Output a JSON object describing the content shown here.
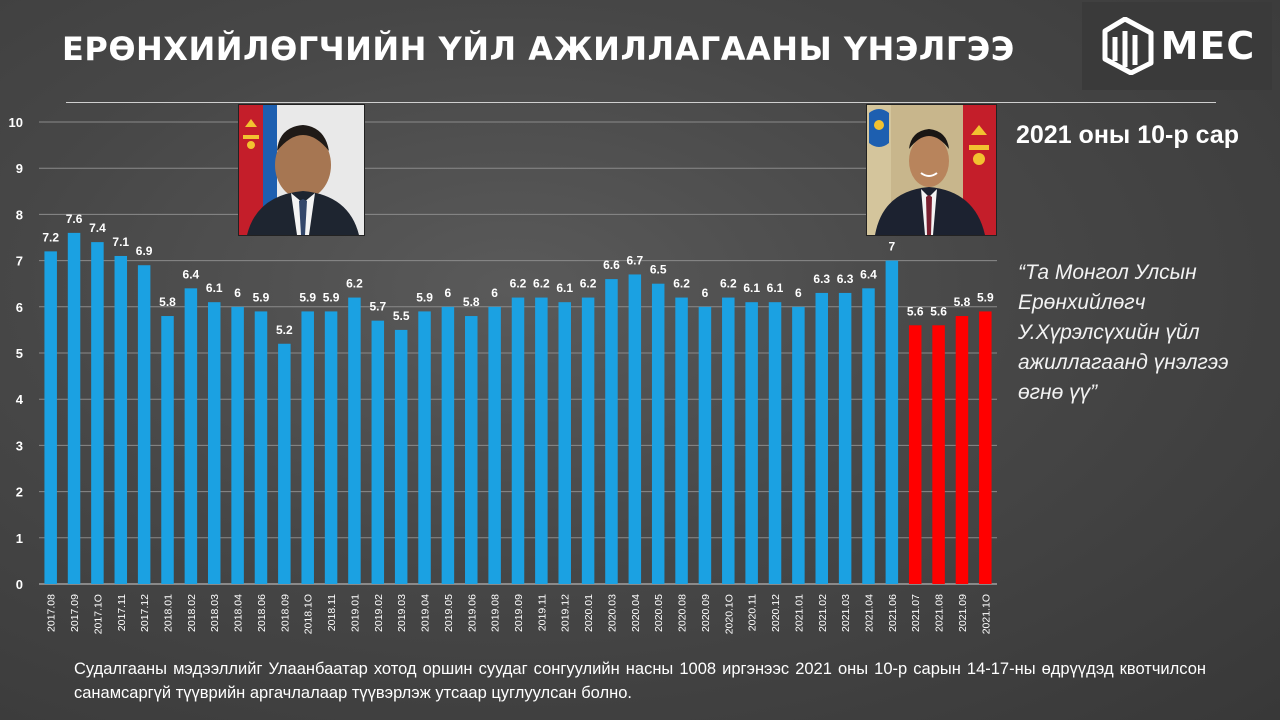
{
  "header": {
    "title": "ЕРӨНХИЙЛӨГЧИЙН ҮЙЛ АЖИЛЛАГААНЫ ҮНЭЛГЭЭ",
    "logo_text": "MEC"
  },
  "period_label": "2021 оны 10-р сар",
  "question_lines": [
    "“Та Монгол Улсын",
    "Ерөнхийлөгч",
    "У.Хүрэлсүхийн үйл",
    "ажиллагаанд үнэлгээ",
    "өгнө үү”"
  ],
  "footnote": "Судалгааны мэдээллийг Улаанбаатар хотод оршин суудаг сонгуулийн насны 1008 иргэнээс 2021 оны 10-р сарын 14-17-ны өдрүүдэд квотчилсон санамсаргүй түүврийн аргачлалаар түүвэрлэж утсаар цуглуулсан болно.",
  "colors": {
    "series_1": "#1BA1E2",
    "series_2": "#FF0000",
    "background": "#474747",
    "text": "#FFFFFF"
  },
  "chart_data": {
    "type": "bar",
    "title": "",
    "xlabel": "",
    "ylabel": "",
    "ylim": [
      0,
      10
    ],
    "yticks": [
      0,
      1,
      2,
      3,
      4,
      5,
      6,
      7,
      8,
      9,
      10
    ],
    "grid": true,
    "legend": "none",
    "categories": [
      "2017.08",
      "2017.09",
      "2017.1O",
      "2017.11",
      "2017.12",
      "2018.01",
      "2018.02",
      "2018.03",
      "2018.04",
      "2018.06",
      "2018.09",
      "2018.1O",
      "2018.11",
      "2019.01",
      "2019.02",
      "2019.03",
      "2019.04",
      "2019.05",
      "2019.06",
      "2019.08",
      "2019.09",
      "2019.11",
      "2019.12",
      "2020.01",
      "2020.03",
      "2020.04",
      "2020.05",
      "2020.08",
      "2020.09",
      "2020.1O",
      "2020.11",
      "2020.12",
      "2021.01",
      "2021.02",
      "2021.03",
      "2021.04",
      "2021.06",
      "2021.07",
      "2021.08",
      "2021.09",
      "2021.1O"
    ],
    "series": [
      {
        "values": [
          7.2,
          7.6,
          7.4,
          7.1,
          6.9,
          5.8,
          6.4,
          6.1,
          6,
          5.9,
          5.2,
          5.9,
          5.9,
          6.2,
          5.7,
          5.5,
          5.9,
          6,
          5.8,
          6,
          6.2,
          6.2,
          6.1,
          6.2,
          6.6,
          6.7,
          6.5,
          6.2,
          6,
          6.2,
          6.1,
          6.1,
          6,
          6.3,
          6.3,
          6.4,
          7,
          null,
          null,
          null,
          null
        ],
        "color": "#1BA1E2"
      },
      {
        "values": [
          null,
          null,
          null,
          null,
          null,
          null,
          null,
          null,
          null,
          null,
          null,
          null,
          null,
          null,
          null,
          null,
          null,
          null,
          null,
          null,
          null,
          null,
          null,
          null,
          null,
          null,
          null,
          null,
          null,
          null,
          null,
          null,
          null,
          null,
          null,
          null,
          null,
          5.6,
          5.6,
          5.8,
          5.9
        ],
        "color": "#FF0000"
      }
    ]
  }
}
